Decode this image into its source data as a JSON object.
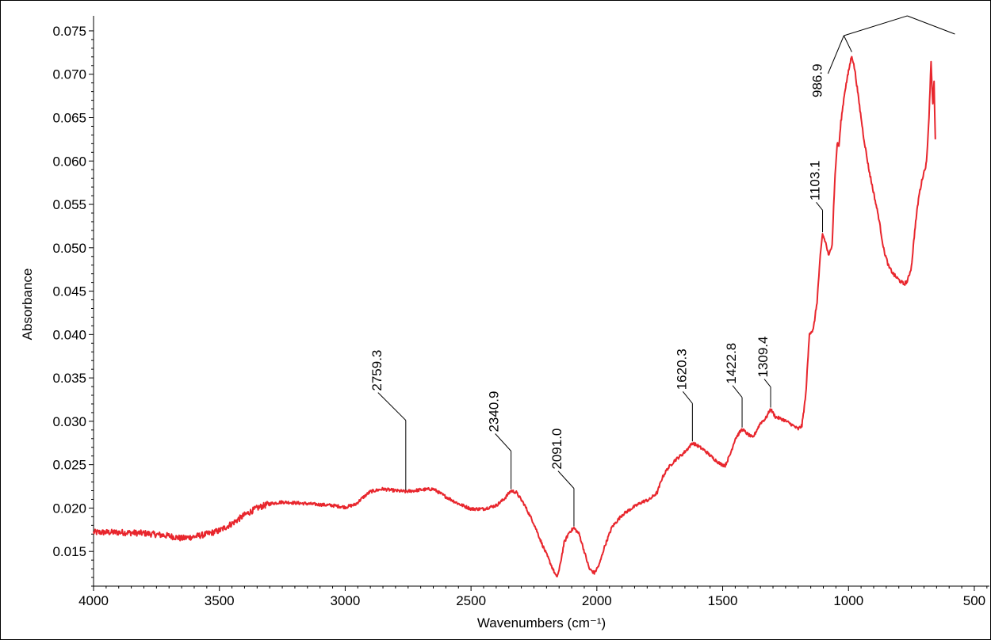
{
  "chart_data": {
    "type": "line",
    "title": "",
    "xlabel": "Wavenumbers (cm⁻¹)",
    "ylabel": "Absorbance",
    "xlim": [
      4000,
      440
    ],
    "ylim": [
      0.011,
      0.076
    ],
    "x_reversed": true,
    "grid": false,
    "x_ticks": [
      4000,
      3500,
      3000,
      2500,
      2000,
      1500,
      1000,
      500
    ],
    "y_ticks": [
      0.015,
      0.02,
      0.025,
      0.03,
      0.035,
      0.04,
      0.045,
      0.05,
      0.055,
      0.06,
      0.065,
      0.07,
      0.075
    ],
    "y_tick_labels": [
      "0.015",
      "0.020",
      "0.025",
      "0.030",
      "0.035",
      "0.040",
      "0.045",
      "0.050",
      "0.055",
      "0.060",
      "0.065",
      "0.070",
      "0.075"
    ],
    "series_color": "#e8262d",
    "series": [
      {
        "points": [
          [
            4000,
            0.0172
          ],
          [
            3900,
            0.0172
          ],
          [
            3800,
            0.0171
          ],
          [
            3700,
            0.0168
          ],
          [
            3650,
            0.0165
          ],
          [
            3600,
            0.0167
          ],
          [
            3550,
            0.017
          ],
          [
            3500,
            0.0174
          ],
          [
            3450,
            0.0182
          ],
          [
            3400,
            0.0192
          ],
          [
            3350,
            0.02
          ],
          [
            3300,
            0.0205
          ],
          [
            3250,
            0.0207
          ],
          [
            3200,
            0.0206
          ],
          [
            3150,
            0.0205
          ],
          [
            3100,
            0.0204
          ],
          [
            3050,
            0.0203
          ],
          [
            3000,
            0.0201
          ],
          [
            2960,
            0.0204
          ],
          [
            2930,
            0.0212
          ],
          [
            2900,
            0.0219
          ],
          [
            2850,
            0.0222
          ],
          [
            2800,
            0.022
          ],
          [
            2759.3,
            0.0219
          ],
          [
            2700,
            0.0221
          ],
          [
            2650,
            0.0222
          ],
          [
            2600,
            0.0213
          ],
          [
            2550,
            0.0205
          ],
          [
            2500,
            0.0199
          ],
          [
            2450,
            0.0199
          ],
          [
            2400,
            0.0203
          ],
          [
            2370,
            0.021
          ],
          [
            2340.9,
            0.022
          ],
          [
            2320,
            0.0218
          ],
          [
            2290,
            0.0205
          ],
          [
            2250,
            0.0182
          ],
          [
            2220,
            0.016
          ],
          [
            2190,
            0.014
          ],
          [
            2160,
            0.012
          ],
          [
            2150,
            0.0128
          ],
          [
            2130,
            0.016
          ],
          [
            2110,
            0.0172
          ],
          [
            2091.0,
            0.0177
          ],
          [
            2070,
            0.017
          ],
          [
            2050,
            0.015
          ],
          [
            2030,
            0.013
          ],
          [
            2010,
            0.0125
          ],
          [
            1990,
            0.0135
          ],
          [
            1970,
            0.0155
          ],
          [
            1940,
            0.0178
          ],
          [
            1900,
            0.0192
          ],
          [
            1860,
            0.02
          ],
          [
            1820,
            0.0207
          ],
          [
            1790,
            0.021
          ],
          [
            1760,
            0.0218
          ],
          [
            1740,
            0.0235
          ],
          [
            1720,
            0.0245
          ],
          [
            1690,
            0.0255
          ],
          [
            1660,
            0.0262
          ],
          [
            1640,
            0.0268
          ],
          [
            1620.3,
            0.0275
          ],
          [
            1600,
            0.0272
          ],
          [
            1570,
            0.0266
          ],
          [
            1540,
            0.0258
          ],
          [
            1510,
            0.0251
          ],
          [
            1490,
            0.0249
          ],
          [
            1470,
            0.0262
          ],
          [
            1450,
            0.028
          ],
          [
            1422.8,
            0.0291
          ],
          [
            1400,
            0.0285
          ],
          [
            1380,
            0.0281
          ],
          [
            1350,
            0.0298
          ],
          [
            1330,
            0.0303
          ],
          [
            1309.4,
            0.0314
          ],
          [
            1290,
            0.0305
          ],
          [
            1260,
            0.0302
          ],
          [
            1230,
            0.0297
          ],
          [
            1200,
            0.0291
          ],
          [
            1185,
            0.0295
          ],
          [
            1170,
            0.033
          ],
          [
            1155,
            0.0402
          ],
          [
            1140,
            0.0405
          ],
          [
            1125,
            0.0438
          ],
          [
            1112,
            0.049
          ],
          [
            1103.1,
            0.0516
          ],
          [
            1090,
            0.0505
          ],
          [
            1078,
            0.049
          ],
          [
            1065,
            0.0505
          ],
          [
            1055,
            0.0575
          ],
          [
            1045,
            0.062
          ],
          [
            1038,
            0.0617
          ],
          [
            1030,
            0.0645
          ],
          [
            1015,
            0.068
          ],
          [
            1000,
            0.0703
          ],
          [
            986.9,
            0.0722
          ],
          [
            975,
            0.0705
          ],
          [
            960,
            0.0672
          ],
          [
            940,
            0.0628
          ],
          [
            920,
            0.0592
          ],
          [
            900,
            0.0563
          ],
          [
            880,
            0.0535
          ],
          [
            860,
            0.0498
          ],
          [
            840,
            0.0478
          ],
          [
            820,
            0.0469
          ],
          [
            800,
            0.0463
          ],
          [
            780,
            0.0458
          ],
          [
            765,
            0.0462
          ],
          [
            750,
            0.0478
          ],
          [
            735,
            0.0525
          ],
          [
            720,
            0.056
          ],
          [
            705,
            0.0582
          ],
          [
            690,
            0.0598
          ],
          [
            680,
            0.0652
          ],
          [
            672,
            0.0715
          ],
          [
            665,
            0.0665
          ],
          [
            660,
            0.069
          ],
          [
            655,
            0.0625
          ]
        ]
      }
    ],
    "annotations": [
      {
        "label": "2759.3",
        "x": 2759.3,
        "y": 0.0219
      },
      {
        "label": "2340.9",
        "x": 2340.9,
        "y": 0.022
      },
      {
        "label": "2091.0",
        "x": 2091.0,
        "y": 0.0177
      },
      {
        "label": "1620.3",
        "x": 1620.3,
        "y": 0.0275
      },
      {
        "label": "1422.8",
        "x": 1422.8,
        "y": 0.0291
      },
      {
        "label": "1309.4",
        "x": 1309.4,
        "y": 0.0314
      },
      {
        "label": "1103.1",
        "x": 1103.1,
        "y": 0.0516
      },
      {
        "label": "986.9",
        "x": 986.9,
        "y": 0.0722
      }
    ]
  }
}
